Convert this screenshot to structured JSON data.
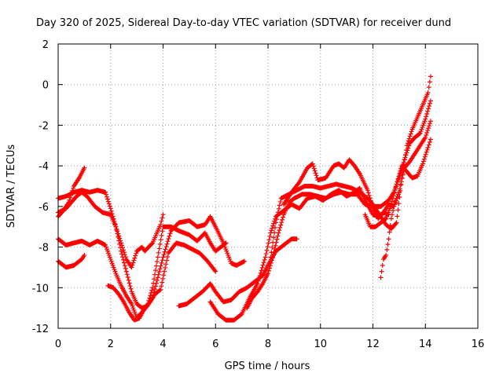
{
  "chart_data": {
    "type": "scatter",
    "title": "Day 320 of 2025, Sidereal Day-to-day VTEC variation (SDTVAR) for receiver dund",
    "xlabel": "GPS time / hours",
    "ylabel": "SDTVAR / TECUs",
    "xlim": [
      0,
      16
    ],
    "ylim": [
      -12,
      2
    ],
    "xticks": [
      "0",
      "2",
      "4",
      "6",
      "8",
      "10",
      "12",
      "14",
      "16"
    ],
    "yticks": [
      "2",
      "0",
      "-2",
      "-4",
      "-6",
      "-8",
      "-10",
      "-12"
    ],
    "grid": true,
    "marker": "+",
    "color": "#ff0000",
    "series": [
      {
        "points": [
          [
            0.0,
            -5.6
          ],
          [
            0.3,
            -5.5
          ],
          [
            0.6,
            -5.3
          ],
          [
            0.9,
            -5.2
          ],
          [
            1.2,
            -5.3
          ],
          [
            1.5,
            -5.2
          ],
          [
            1.8,
            -5.3
          ],
          [
            2.0,
            -6.1
          ],
          [
            2.2,
            -7.0
          ],
          [
            2.4,
            -8.2
          ],
          [
            2.6,
            -9.2
          ],
          [
            2.8,
            -10.2
          ],
          [
            3.0,
            -10.8
          ],
          [
            3.2,
            -11.0
          ],
          [
            3.4,
            -10.9
          ],
          [
            3.6,
            -10.5
          ],
          [
            3.8,
            -9.5
          ],
          [
            4.0,
            -8.5
          ],
          [
            4.3,
            -7.2
          ],
          [
            4.6,
            -6.8
          ],
          [
            5.0,
            -6.7
          ],
          [
            5.3,
            -7.0
          ],
          [
            5.6,
            -6.9
          ],
          [
            5.8,
            -6.5
          ],
          [
            6.0,
            -7.0
          ],
          [
            6.3,
            -7.8
          ],
          [
            6.6,
            -8.8
          ],
          [
            6.8,
            -8.9
          ],
          [
            7.1,
            -8.7
          ]
        ]
      },
      {
        "points": [
          [
            0.0,
            -6.3
          ],
          [
            0.3,
            -6.1
          ],
          [
            0.5,
            -5.8
          ],
          [
            0.7,
            -5.5
          ],
          [
            0.9,
            -5.3
          ],
          [
            1.1,
            -5.5
          ],
          [
            1.4,
            -6.0
          ],
          [
            1.7,
            -6.3
          ],
          [
            2.0,
            -6.4
          ],
          [
            2.2,
            -7.0
          ],
          [
            2.4,
            -7.8
          ],
          [
            2.6,
            -8.6
          ],
          [
            2.8,
            -9.0
          ],
          [
            3.0,
            -8.2
          ],
          [
            3.2,
            -8.0
          ],
          [
            3.3,
            -8.2
          ],
          [
            3.6,
            -7.8
          ],
          [
            3.9,
            -6.9
          ],
          [
            4.0,
            -6.4
          ]
        ]
      },
      {
        "points": [
          [
            0.0,
            -6.5
          ],
          [
            0.2,
            -6.2
          ],
          [
            0.4,
            -5.8
          ],
          [
            0.6,
            -5.0
          ],
          [
            0.8,
            -4.6
          ],
          [
            1.0,
            -4.1
          ]
        ]
      },
      {
        "points": [
          [
            0.0,
            -7.6
          ],
          [
            0.3,
            -7.9
          ],
          [
            0.6,
            -7.8
          ],
          [
            0.9,
            -7.7
          ],
          [
            1.2,
            -7.9
          ],
          [
            1.5,
            -7.7
          ],
          [
            1.8,
            -7.9
          ],
          [
            2.0,
            -8.6
          ],
          [
            2.2,
            -9.3
          ],
          [
            2.4,
            -9.9
          ],
          [
            2.6,
            -10.4
          ],
          [
            2.8,
            -10.8
          ],
          [
            3.0,
            -11.5
          ],
          [
            3.2,
            -11.2
          ],
          [
            3.4,
            -10.9
          ],
          [
            3.6,
            -10.0
          ],
          [
            3.8,
            -8.5
          ],
          [
            4.0,
            -7.0
          ],
          [
            4.3,
            -7.0
          ],
          [
            4.6,
            -7.2
          ],
          [
            5.0,
            -7.4
          ],
          [
            5.3,
            -7.7
          ],
          [
            5.6,
            -7.3
          ],
          [
            5.8,
            -7.8
          ],
          [
            6.0,
            -8.2
          ],
          [
            6.2,
            -8.0
          ],
          [
            6.4,
            -7.8
          ]
        ]
      },
      {
        "points": [
          [
            0.0,
            -8.7
          ],
          [
            0.3,
            -9.0
          ],
          [
            0.6,
            -8.9
          ],
          [
            0.9,
            -8.6
          ],
          [
            1.0,
            -8.4
          ]
        ]
      },
      {
        "points": [
          [
            1.9,
            -9.9
          ],
          [
            2.1,
            -10.0
          ],
          [
            2.3,
            -10.3
          ],
          [
            2.5,
            -10.7
          ],
          [
            2.7,
            -11.2
          ],
          [
            2.9,
            -11.6
          ],
          [
            3.1,
            -11.5
          ],
          [
            3.3,
            -11.0
          ],
          [
            3.5,
            -10.7
          ],
          [
            3.7,
            -10.3
          ],
          [
            3.9,
            -10.1
          ],
          [
            4.2,
            -8.3
          ],
          [
            4.5,
            -7.8
          ],
          [
            4.8,
            -7.9
          ],
          [
            5.1,
            -8.1
          ],
          [
            5.4,
            -8.3
          ],
          [
            5.7,
            -8.7
          ],
          [
            6.0,
            -9.2
          ]
        ]
      },
      {
        "points": [
          [
            4.6,
            -10.9
          ],
          [
            4.9,
            -10.8
          ],
          [
            5.2,
            -10.5
          ],
          [
            5.5,
            -10.2
          ],
          [
            5.8,
            -9.8
          ],
          [
            6.0,
            -10.2
          ],
          [
            6.3,
            -10.7
          ],
          [
            6.6,
            -10.6
          ],
          [
            6.9,
            -10.2
          ],
          [
            7.2,
            -10.0
          ],
          [
            7.5,
            -9.7
          ],
          [
            7.8,
            -9.4
          ],
          [
            8.0,
            -8.9
          ],
          [
            8.3,
            -8.2
          ],
          [
            8.6,
            -7.9
          ],
          [
            8.9,
            -7.6
          ],
          [
            9.1,
            -7.6
          ]
        ]
      },
      {
        "points": [
          [
            5.8,
            -10.7
          ],
          [
            6.1,
            -11.3
          ],
          [
            6.4,
            -11.6
          ],
          [
            6.7,
            -11.6
          ],
          [
            7.0,
            -11.3
          ],
          [
            7.3,
            -10.5
          ],
          [
            7.6,
            -9.8
          ],
          [
            7.9,
            -8.5
          ],
          [
            8.1,
            -7.3
          ],
          [
            8.3,
            -6.5
          ],
          [
            8.6,
            -6.2
          ],
          [
            8.9,
            -5.9
          ],
          [
            9.2,
            -6.1
          ],
          [
            9.5,
            -5.6
          ],
          [
            9.8,
            -5.5
          ],
          [
            10.1,
            -5.7
          ],
          [
            10.4,
            -5.4
          ],
          [
            10.7,
            -5.2
          ],
          [
            11.0,
            -5.5
          ],
          [
            11.3,
            -5.3
          ],
          [
            11.5,
            -5.1
          ],
          [
            11.7,
            -5.7
          ],
          [
            12.0,
            -6.4
          ],
          [
            12.2,
            -6.5
          ],
          [
            12.4,
            -6.3
          ],
          [
            12.6,
            -6.4
          ]
        ]
      },
      {
        "points": [
          [
            7.2,
            -11.0
          ],
          [
            7.4,
            -10.5
          ],
          [
            7.6,
            -10.2
          ],
          [
            7.8,
            -9.8
          ],
          [
            8.0,
            -9.3
          ],
          [
            8.2,
            -8.4
          ],
          [
            8.4,
            -7.3
          ],
          [
            8.6,
            -6.4
          ],
          [
            8.8,
            -5.8
          ],
          [
            9.0,
            -5.6
          ],
          [
            9.3,
            -5.4
          ],
          [
            9.6,
            -5.4
          ],
          [
            9.9,
            -5.5
          ],
          [
            10.2,
            -5.6
          ],
          [
            10.5,
            -5.4
          ],
          [
            10.8,
            -5.3
          ],
          [
            11.1,
            -5.4
          ],
          [
            11.4,
            -5.4
          ],
          [
            11.7,
            -5.9
          ],
          [
            12.0,
            -6.0
          ],
          [
            12.3,
            -6.0
          ],
          [
            12.6,
            -5.7
          ],
          [
            12.8,
            -5.3
          ],
          [
            13.0,
            -4.6
          ],
          [
            13.2,
            -3.7
          ],
          [
            13.4,
            -2.9
          ],
          [
            13.6,
            -2.6
          ],
          [
            13.8,
            -2.4
          ],
          [
            14.0,
            -1.7
          ],
          [
            14.2,
            -0.8
          ]
        ]
      },
      {
        "points": [
          [
            8.1,
            -8.5
          ],
          [
            8.3,
            -6.8
          ],
          [
            8.5,
            -5.6
          ],
          [
            8.8,
            -5.4
          ],
          [
            9.1,
            -5.2
          ],
          [
            9.4,
            -5.0
          ],
          [
            9.7,
            -5.0
          ],
          [
            10.0,
            -5.1
          ],
          [
            10.3,
            -5.0
          ],
          [
            10.6,
            -4.9
          ],
          [
            10.9,
            -5.0
          ],
          [
            11.2,
            -5.1
          ],
          [
            11.5,
            -5.3
          ],
          [
            11.8,
            -5.6
          ],
          [
            12.0,
            -5.9
          ],
          [
            12.3,
            -6.5
          ],
          [
            12.5,
            -6.9
          ],
          [
            12.7,
            -7.1
          ],
          [
            12.9,
            -6.8
          ],
          [
            13.1,
            -4.6
          ],
          [
            13.3,
            -3.0
          ],
          [
            13.5,
            -2.2
          ],
          [
            13.7,
            -1.6
          ],
          [
            13.9,
            -1.0
          ],
          [
            14.1,
            -0.4
          ],
          [
            14.2,
            0.4
          ]
        ]
      },
      {
        "points": [
          [
            8.6,
            -5.9
          ],
          [
            8.9,
            -5.3
          ],
          [
            9.2,
            -4.8
          ],
          [
            9.5,
            -4.1
          ],
          [
            9.7,
            -3.9
          ],
          [
            9.9,
            -4.7
          ],
          [
            10.2,
            -4.6
          ],
          [
            10.5,
            -4.0
          ],
          [
            10.7,
            -3.9
          ],
          [
            10.9,
            -4.1
          ],
          [
            11.1,
            -3.7
          ],
          [
            11.3,
            -4.0
          ],
          [
            11.5,
            -4.4
          ],
          [
            11.8,
            -5.2
          ],
          [
            12.0,
            -6.1
          ],
          [
            12.2,
            -6.6
          ],
          [
            12.4,
            -6.3
          ],
          [
            12.6,
            -5.9
          ],
          [
            12.8,
            -6.0
          ],
          [
            13.0,
            -5.3
          ],
          [
            13.2,
            -4.1
          ],
          [
            13.4,
            -3.8
          ],
          [
            13.6,
            -3.4
          ],
          [
            13.8,
            -3.0
          ],
          [
            14.0,
            -2.6
          ],
          [
            14.2,
            -1.8
          ]
        ]
      },
      {
        "points": [
          [
            11.7,
            -6.4
          ],
          [
            11.9,
            -7.0
          ],
          [
            12.1,
            -7.0
          ],
          [
            12.3,
            -6.8
          ],
          [
            12.5,
            -6.6
          ],
          [
            12.7,
            -5.9
          ],
          [
            12.9,
            -4.9
          ],
          [
            13.1,
            -4.0
          ],
          [
            13.3,
            -4.3
          ],
          [
            13.5,
            -4.6
          ],
          [
            13.7,
            -4.5
          ],
          [
            13.9,
            -3.9
          ],
          [
            14.1,
            -3.1
          ],
          [
            14.2,
            -2.7
          ]
        ]
      },
      {
        "points": [
          [
            12.3,
            -9.5
          ],
          [
            12.4,
            -8.6
          ],
          [
            12.5,
            -8.4
          ],
          [
            12.6,
            -7.6
          ],
          [
            12.7,
            -6.6
          ],
          [
            12.8,
            -6.0
          ],
          [
            12.9,
            -5.6
          ],
          [
            13.0,
            -5.3
          ]
        ]
      }
    ]
  }
}
